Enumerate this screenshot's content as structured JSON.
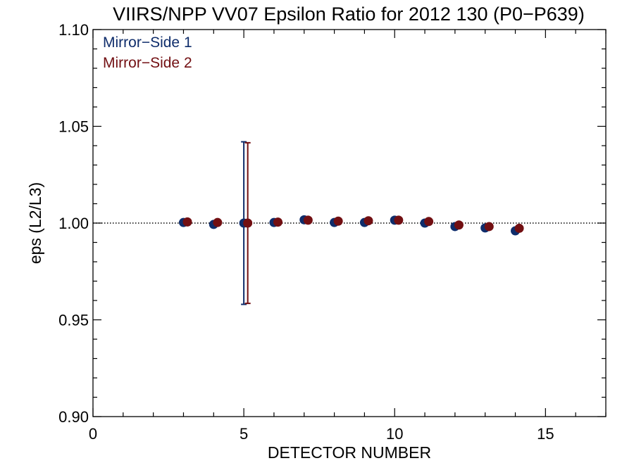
{
  "chart_data": {
    "type": "scatter",
    "title": "VIIRS/NPP VV07 Epsilon Ratio for 2012 130 (P0−P639)",
    "xlabel": "DETECTOR NUMBER",
    "ylabel": "eps (L2/L3)",
    "xlim": [
      0,
      17
    ],
    "ylim": [
      0.9,
      1.1
    ],
    "x_ticks": [
      0,
      5,
      10,
      15
    ],
    "x_tick_labels": [
      "0",
      "5",
      "10",
      "15"
    ],
    "y_ticks": [
      0.9,
      0.95,
      1.0,
      1.05,
      1.1
    ],
    "y_tick_labels": [
      "0.90",
      "0.95",
      "1.00",
      "1.05",
      "1.10"
    ],
    "reference_line": {
      "y": 1.0,
      "style": "dotted"
    },
    "legend_placement": "top-left",
    "grid": false,
    "series": [
      {
        "name": "Mirror−Side 1",
        "color": "#0f2d6b",
        "x": [
          3,
          4,
          5,
          6,
          7,
          8,
          9,
          10,
          11,
          12,
          13,
          14
        ],
        "y": [
          1.0003,
          0.9993,
          1.0,
          1.0003,
          1.0017,
          1.0003,
          1.0003,
          1.0015,
          1.0,
          0.9982,
          0.9975,
          0.996
        ],
        "error_bars": [
          {
            "x": 5,
            "low": 0.958,
            "high": 1.042
          }
        ]
      },
      {
        "name": "Mirror−Side 2",
        "color": "#720f12",
        "x": [
          3,
          4,
          5,
          6,
          7,
          8,
          9,
          10,
          11,
          12,
          13,
          14
        ],
        "y": [
          1.0006,
          1.0003,
          1.0,
          1.0005,
          1.0015,
          1.001,
          1.0012,
          1.0015,
          1.0008,
          0.999,
          0.9982,
          0.9973
        ],
        "error_bars": [
          {
            "x": 5,
            "low": 0.9585,
            "high": 1.0415
          }
        ]
      }
    ]
  }
}
